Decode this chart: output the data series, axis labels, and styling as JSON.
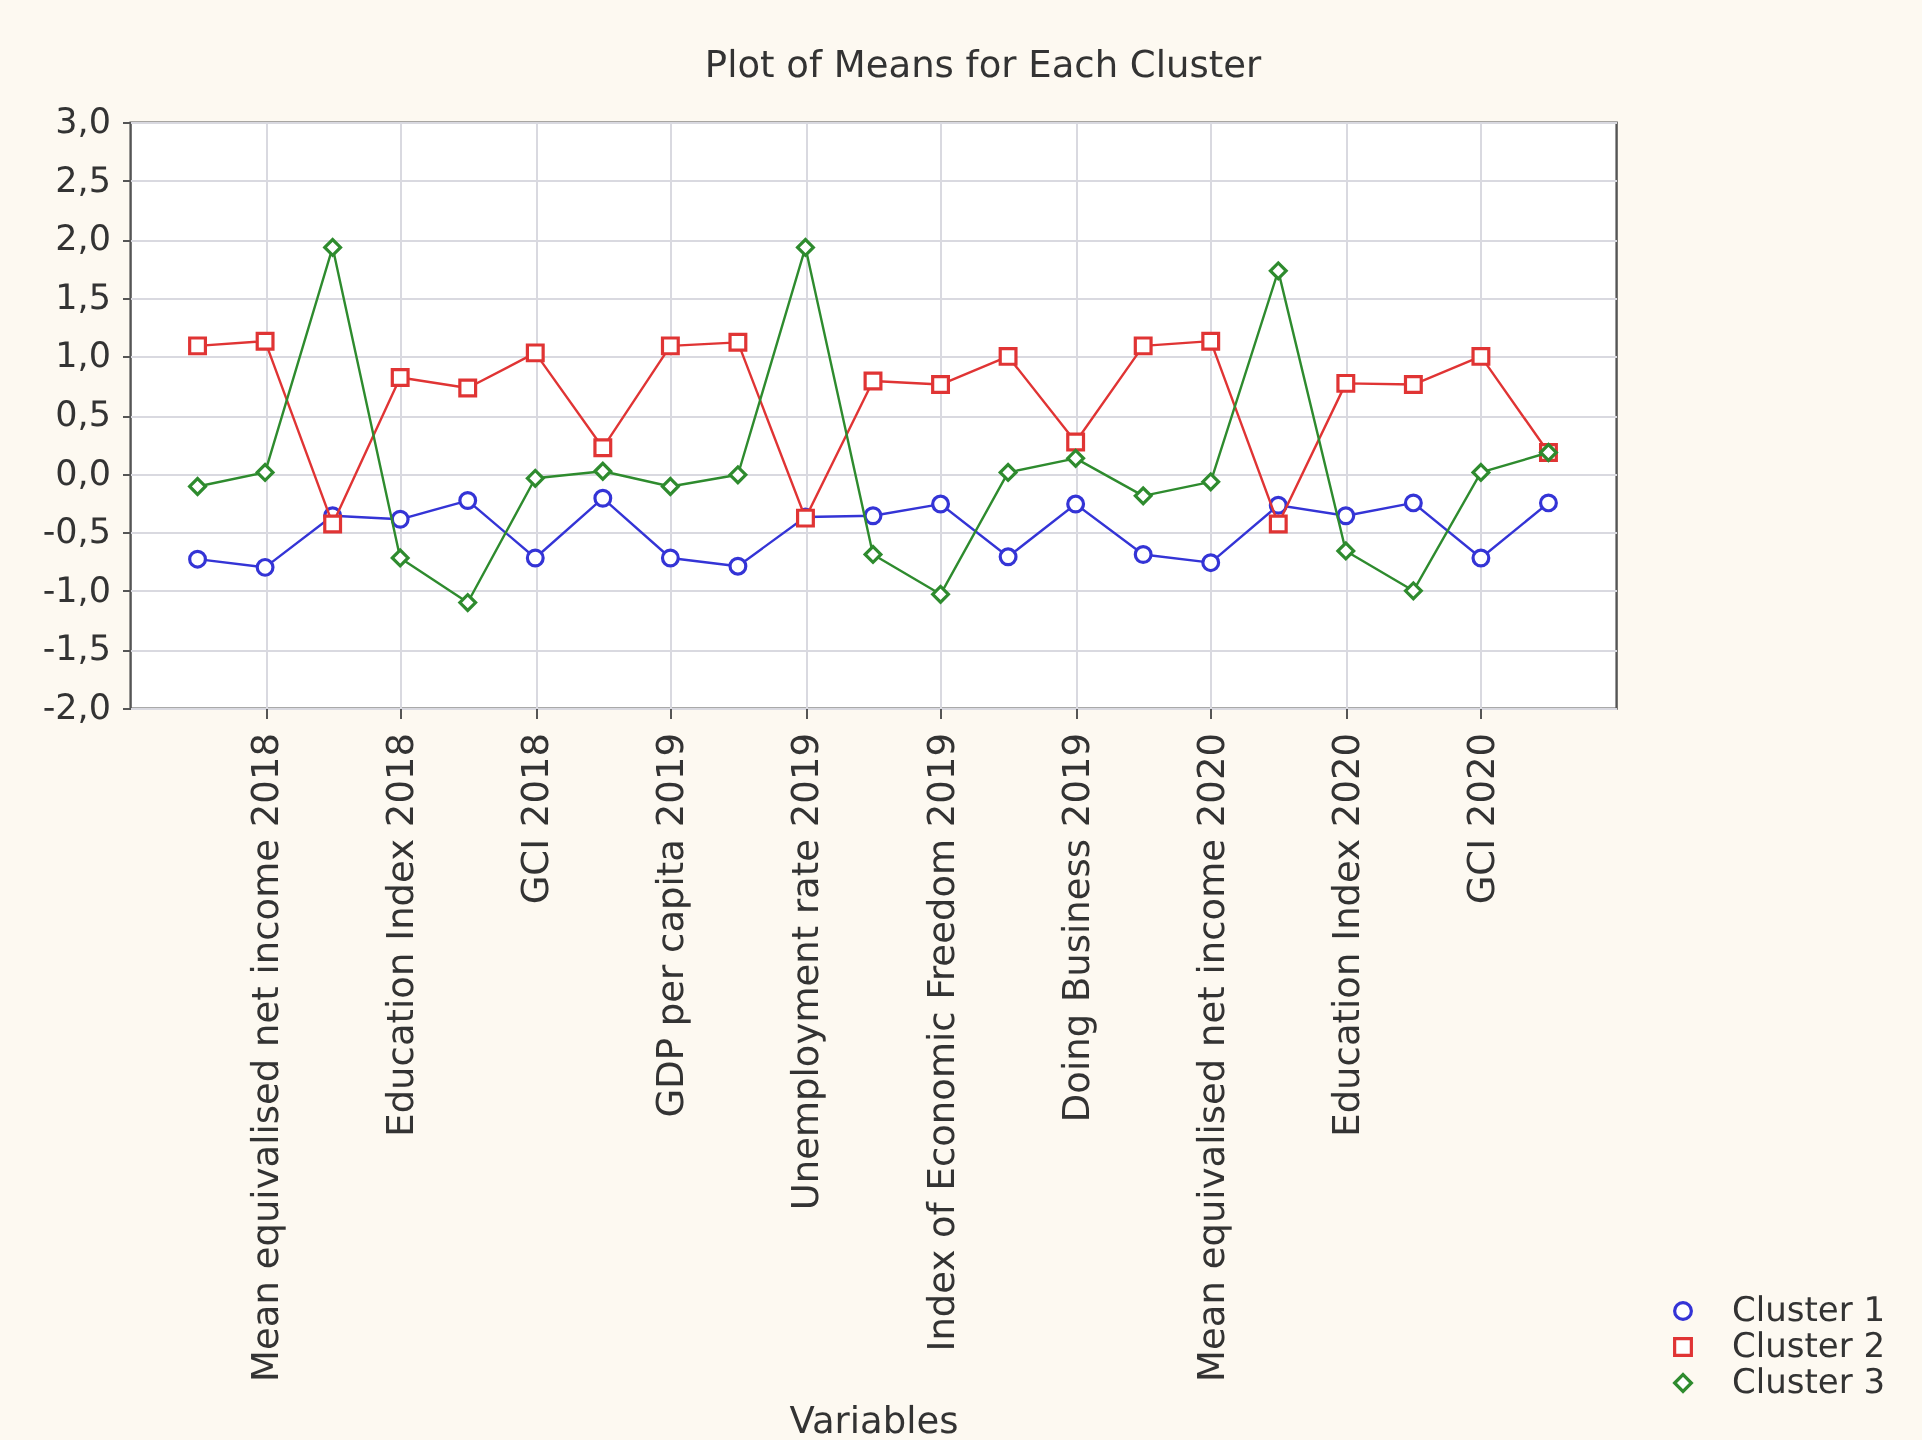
{
  "chart_data": {
    "type": "line",
    "title": "Plot of Means for Each Cluster",
    "xlabel": "Variables",
    "categories": [
      null,
      "Mean equivalised net income 2018",
      null,
      "Education Index 2018",
      null,
      "GCI 2018",
      null,
      "GDP per capita 2019",
      null,
      "Unemployment rate 2019",
      null,
      "Index of Economic Freedom 2019",
      null,
      "Doing Business 2019",
      null,
      "Mean equivalised net income 2020",
      null,
      "Education Index 2020",
      null,
      "GCI 2020",
      null
    ],
    "series": [
      {
        "name": "Cluster 1",
        "color": "#3434d6",
        "marker": "circle",
        "values": [
          -0.73,
          -0.8,
          -0.36,
          -0.39,
          -0.23,
          -0.72,
          -0.21,
          -0.72,
          -0.79,
          -0.37,
          -0.36,
          -0.26,
          -0.71,
          -0.26,
          -0.69,
          -0.76,
          -0.27,
          -0.36,
          -0.25,
          -0.72,
          -0.25
        ]
      },
      {
        "name": "Cluster 2",
        "color": "#e03434",
        "marker": "square",
        "values": [
          1.09,
          1.13,
          -0.43,
          0.82,
          0.73,
          1.03,
          0.22,
          1.09,
          1.12,
          -0.38,
          0.79,
          0.76,
          1.0,
          0.27,
          1.09,
          1.13,
          -0.43,
          0.77,
          0.76,
          1.0,
          0.18
        ]
      },
      {
        "name": "Cluster 3",
        "color": "#2e8b2e",
        "marker": "diamond",
        "values": [
          -0.11,
          0.01,
          1.93,
          -0.72,
          -1.1,
          -0.04,
          0.02,
          -0.11,
          -0.01,
          1.93,
          -0.69,
          -1.03,
          0.01,
          0.13,
          -0.19,
          -0.07,
          1.73,
          -0.66,
          -1.0,
          0.01,
          0.18
        ]
      }
    ],
    "ylim": [
      -2,
      3
    ],
    "yticks": [
      {
        "value": -2,
        "label": "-2,0"
      },
      {
        "value": -1.5,
        "label": "-1,5"
      },
      {
        "value": -1,
        "label": "-1,0"
      },
      {
        "value": -0.5,
        "label": "-0,5"
      },
      {
        "value": 0,
        "label": "0,0"
      },
      {
        "value": 0.5,
        "label": "0,5"
      },
      {
        "value": 1,
        "label": "1,0"
      },
      {
        "value": 1.5,
        "label": "1,5"
      },
      {
        "value": 2,
        "label": "2,0"
      },
      {
        "value": 2.5,
        "label": "2,5"
      },
      {
        "value": 3,
        "label": "3,0"
      }
    ],
    "grid": true,
    "legend": "bottom right",
    "line_style": "solid"
  }
}
